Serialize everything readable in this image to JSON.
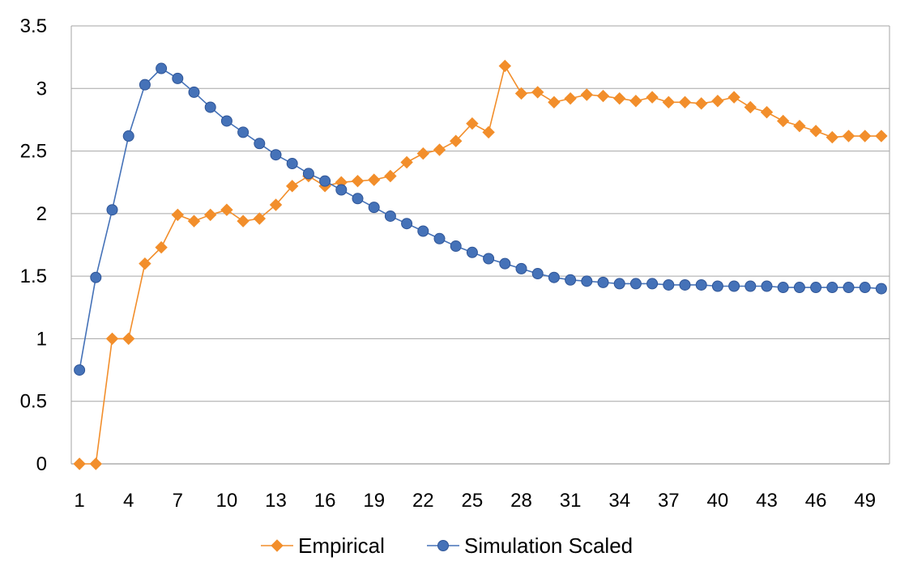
{
  "chart_data": {
    "type": "line",
    "title": "",
    "xlabel": "",
    "ylabel": "",
    "x": [
      1,
      2,
      3,
      4,
      5,
      6,
      7,
      8,
      9,
      10,
      11,
      12,
      13,
      14,
      15,
      16,
      17,
      18,
      19,
      20,
      21,
      22,
      23,
      24,
      25,
      26,
      27,
      28,
      29,
      30,
      31,
      32,
      33,
      34,
      35,
      36,
      37,
      38,
      39,
      40,
      41,
      42,
      43,
      44,
      45,
      46,
      47,
      48,
      49,
      50
    ],
    "x_tick_labels": [
      "1",
      "4",
      "7",
      "10",
      "13",
      "16",
      "19",
      "22",
      "25",
      "28",
      "31",
      "34",
      "37",
      "40",
      "43",
      "46",
      "49"
    ],
    "y_tick_labels": [
      "0",
      "0.5",
      "1",
      "1.5",
      "2",
      "2.5",
      "3",
      "3.5"
    ],
    "ylim": [
      0,
      3.5
    ],
    "grid": "horizontal",
    "legend_position": "bottom",
    "series": [
      {
        "name": "Empirical",
        "color": "#F28E2B",
        "marker": "diamond",
        "values": [
          0,
          0,
          1,
          1,
          1.6,
          1.73,
          1.99,
          1.94,
          1.99,
          2.03,
          1.94,
          1.96,
          2.07,
          2.22,
          2.3,
          2.22,
          2.25,
          2.26,
          2.27,
          2.3,
          2.41,
          2.48,
          2.51,
          2.58,
          2.72,
          2.65,
          3.18,
          2.96,
          2.97,
          2.89,
          2.92,
          2.95,
          2.94,
          2.92,
          2.9,
          2.93,
          2.89,
          2.89,
          2.88,
          2.9,
          2.93,
          2.85,
          2.81,
          2.74,
          2.7,
          2.66,
          2.61,
          2.62,
          2.62,
          2.62
        ]
      },
      {
        "name": "Simulation Scaled",
        "color": "#4572B8",
        "marker": "circle",
        "values": [
          0.75,
          1.49,
          2.03,
          2.62,
          3.03,
          3.16,
          3.08,
          2.97,
          2.85,
          2.74,
          2.65,
          2.56,
          2.47,
          2.4,
          2.32,
          2.26,
          2.19,
          2.12,
          2.05,
          1.98,
          1.92,
          1.86,
          1.8,
          1.74,
          1.69,
          1.64,
          1.6,
          1.56,
          1.52,
          1.49,
          1.47,
          1.46,
          1.45,
          1.44,
          1.44,
          1.44,
          1.43,
          1.43,
          1.43,
          1.42,
          1.42,
          1.42,
          1.42,
          1.41,
          1.41,
          1.41,
          1.41,
          1.41,
          1.41,
          1.4
        ]
      }
    ]
  }
}
